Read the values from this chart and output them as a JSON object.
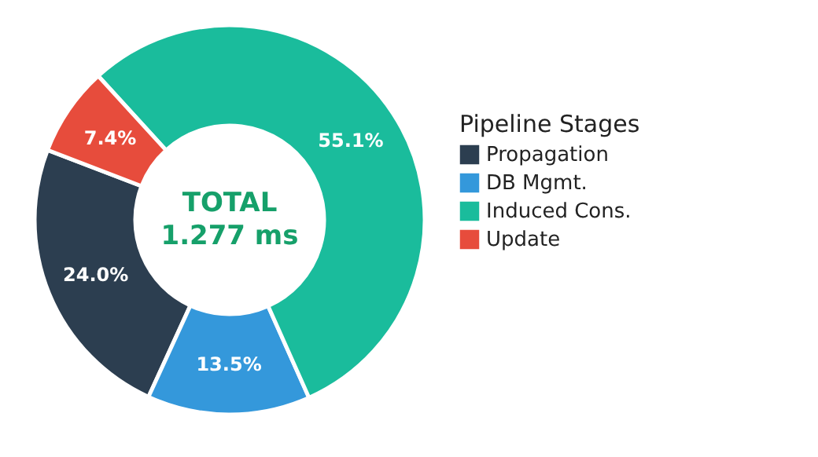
{
  "chart_data": {
    "type": "donut",
    "legend_title": "Pipeline Stages",
    "categories": [
      "Propagation",
      "DB Mgmt.",
      "Induced Cons.",
      "Update"
    ],
    "values": [
      24.0,
      13.5,
      55.1,
      7.4
    ],
    "colors": [
      "#2c3e50",
      "#3498db",
      "#1abc9c",
      "#e74c3c"
    ],
    "value_labels": [
      "24.0%",
      "13.5%",
      "55.1%",
      "7.4%"
    ],
    "annotations": [
      "TOTAL",
      "1.277 ms"
    ],
    "legend": "right"
  }
}
